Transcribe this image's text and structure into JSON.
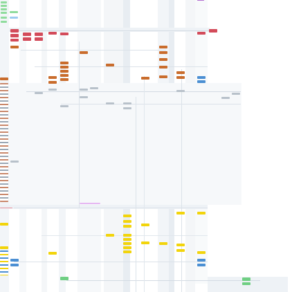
{
  "diagram": {
    "kind": "service-dependency-board",
    "theme": {
      "background": "#ffffff",
      "lane_fill": "#eef2f6",
      "lane_fill_alt": "#f6f8fa",
      "edge_color": "#c9d3dd",
      "accent_red": "#d34b5a",
      "accent_orange": "#c96c2c",
      "accent_yellow": "#f2d40b",
      "accent_green": "#6fcf83",
      "accent_blue": "#4b8fd3",
      "accent_grey": "#b8c1ca",
      "accent_purple": "#b36bd1"
    },
    "captions": []
  }
}
